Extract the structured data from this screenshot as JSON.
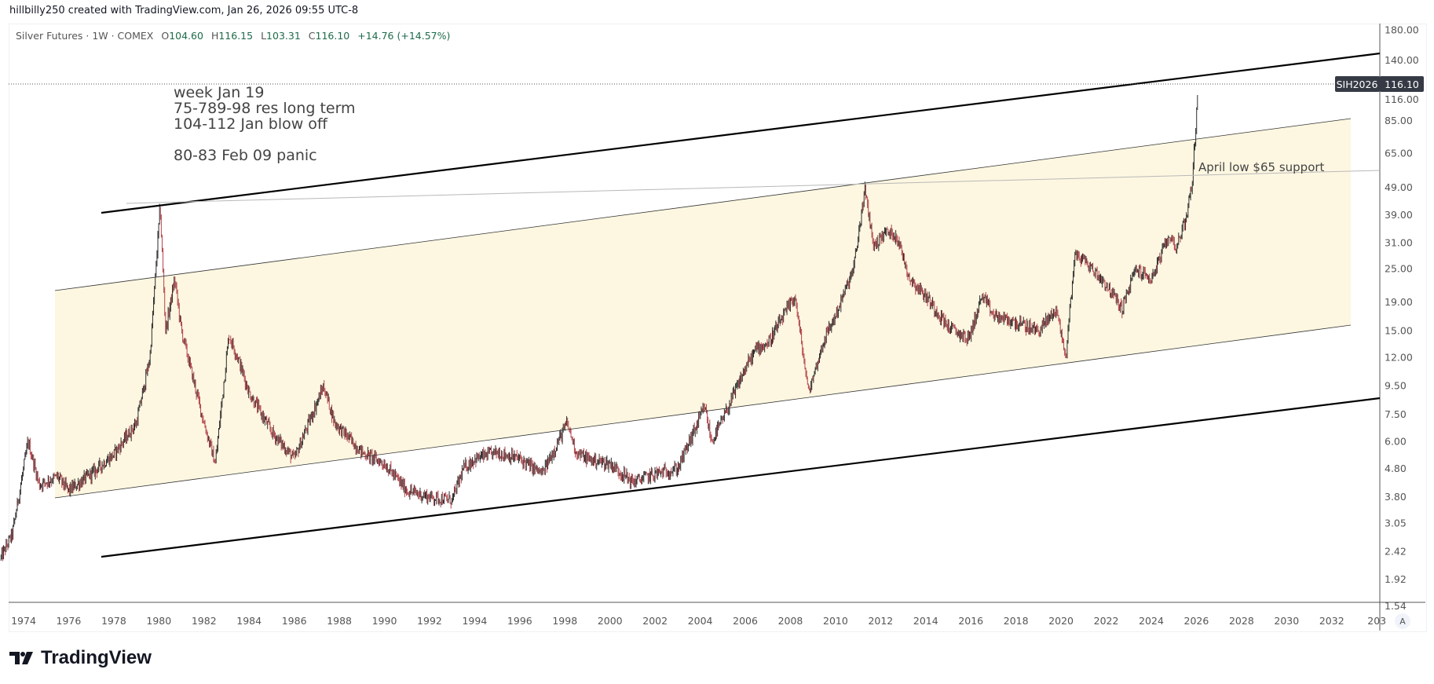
{
  "credit": "hillbilly250 created with TradingView.com, Jan 26, 2026 09:55 UTC-8",
  "legend": {
    "symbol": "Silver Futures · 1W · COMEX",
    "open_label": "O",
    "open": "104.60",
    "high_label": "H",
    "high": "116.15",
    "low_label": "L",
    "low": "103.31",
    "close_label": "C",
    "close": "116.10",
    "change": "+14.76 (+14.57%)"
  },
  "price_tag": {
    "ticker": "SIH2026",
    "price": "116.10"
  },
  "annotations": {
    "notes": [
      "week Jan 19",
      "75-789-98 res long term",
      "104-112 Jan blow off",
      "80-83  Feb 09 panic"
    ],
    "support": "April low $65 support"
  },
  "axis_mode_button": "A",
  "logo": "TradingView",
  "colors": {
    "channel_fill": "#fdf7e1",
    "up": "#2b2b2b",
    "down": "#b2434a",
    "tag_bg": "#363a45"
  },
  "chart_data": {
    "type": "line",
    "title": "Silver Futures · 1W · COMEX",
    "yscale": "log",
    "ylim": [
      1.54,
      180
    ],
    "xlim": [
      1973,
      2034
    ],
    "y_ticks": [
      "180.00",
      "140.00",
      "116.00",
      "85.00",
      "65.00",
      "49.00",
      "39.00",
      "31.00",
      "25.00",
      "19.00",
      "15.00",
      "12.00",
      "9.50",
      "7.50",
      "6.00",
      "4.80",
      "3.80",
      "3.05",
      "2.42",
      "1.92",
      "1.54"
    ],
    "x_ticks": [
      "1974",
      "1976",
      "1978",
      "1980",
      "1982",
      "1984",
      "1986",
      "1988",
      "1990",
      "1992",
      "1994",
      "1996",
      "1998",
      "2000",
      "2002",
      "2004",
      "2006",
      "2008",
      "2010",
      "2012",
      "2014",
      "2016",
      "2018",
      "2020",
      "2022",
      "2024",
      "2026",
      "2028",
      "2030",
      "2032",
      "203"
    ],
    "series": [
      {
        "name": "Silver Futures weekly (approx.)",
        "points": [
          [
            1973.0,
            2.3
          ],
          [
            1973.5,
            2.8
          ],
          [
            1974.2,
            6.0
          ],
          [
            1974.7,
            4.2
          ],
          [
            1975.5,
            4.5
          ],
          [
            1976.0,
            4.0
          ],
          [
            1977.0,
            4.6
          ],
          [
            1978.0,
            5.4
          ],
          [
            1979.0,
            7.0
          ],
          [
            1979.6,
            12
          ],
          [
            1980.05,
            42
          ],
          [
            1980.3,
            15
          ],
          [
            1980.7,
            23
          ],
          [
            1981.0,
            15
          ],
          [
            1982.0,
            7
          ],
          [
            1982.5,
            5
          ],
          [
            1983.1,
            14.5
          ],
          [
            1983.5,
            12
          ],
          [
            1984.0,
            9
          ],
          [
            1985.0,
            6.5
          ],
          [
            1986.0,
            5.2
          ],
          [
            1987.3,
            9.5
          ],
          [
            1987.8,
            7
          ],
          [
            1989.0,
            5.5
          ],
          [
            1990.0,
            5
          ],
          [
            1991.0,
            4
          ],
          [
            1992.0,
            3.8
          ],
          [
            1993.0,
            3.7
          ],
          [
            1993.5,
            4.8
          ],
          [
            1994.0,
            5.2
          ],
          [
            1995.0,
            5.5
          ],
          [
            1996.0,
            5.2
          ],
          [
            1997.0,
            4.6
          ],
          [
            1998.1,
            7
          ],
          [
            1998.5,
            5.5
          ],
          [
            1999.0,
            5.2
          ],
          [
            2000.0,
            5
          ],
          [
            2001.0,
            4.3
          ],
          [
            2002.0,
            4.6
          ],
          [
            2003.0,
            4.8
          ],
          [
            2004.2,
            8
          ],
          [
            2004.5,
            6
          ],
          [
            2005.0,
            7.2
          ],
          [
            2006.0,
            11
          ],
          [
            2006.5,
            13
          ],
          [
            2007.0,
            13.5
          ],
          [
            2008.2,
            20
          ],
          [
            2008.8,
            9
          ],
          [
            2009.5,
            14
          ],
          [
            2010.0,
            17
          ],
          [
            2010.8,
            25
          ],
          [
            2011.3,
            48
          ],
          [
            2011.7,
            30
          ],
          [
            2012.2,
            34
          ],
          [
            2012.7,
            33
          ],
          [
            2013.3,
            23
          ],
          [
            2014.0,
            20
          ],
          [
            2015.0,
            15.5
          ],
          [
            2015.9,
            14
          ],
          [
            2016.5,
            20
          ],
          [
            2017.0,
            17
          ],
          [
            2018.0,
            16
          ],
          [
            2019.0,
            15
          ],
          [
            2019.8,
            18
          ],
          [
            2020.2,
            12
          ],
          [
            2020.6,
            28
          ],
          [
            2021.0,
            27
          ],
          [
            2022.0,
            22
          ],
          [
            2022.7,
            18
          ],
          [
            2023.3,
            25
          ],
          [
            2024.0,
            23
          ],
          [
            2024.8,
            33
          ],
          [
            2025.1,
            30
          ],
          [
            2025.5,
            37
          ],
          [
            2025.8,
            50
          ],
          [
            2025.95,
            75
          ],
          [
            2026.07,
            116.1
          ]
        ]
      }
    ]
  }
}
